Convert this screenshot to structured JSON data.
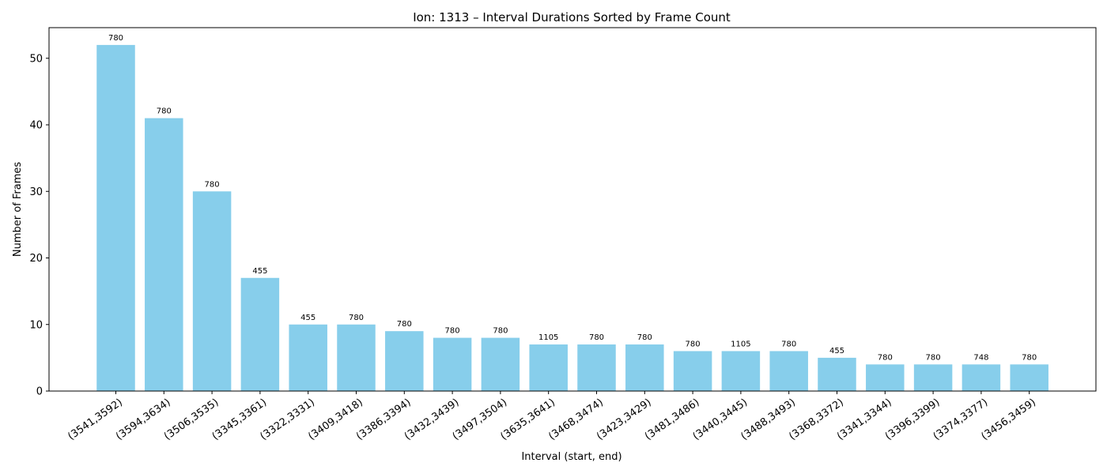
{
  "chart_data": {
    "type": "bar",
    "title": "Ion: 1313 – Interval Durations Sorted by Frame Count",
    "xlabel": "Interval (start, end)",
    "ylabel": "Number of Frames",
    "ylim": [
      0,
      54.6
    ],
    "yticks": [
      0,
      10,
      20,
      30,
      40,
      50
    ],
    "grid": false,
    "bar_color": "#87CEEB",
    "categories": [
      "(3541,3592)",
      "(3594,3634)",
      "(3506,3535)",
      "(3345,3361)",
      "(3322,3331)",
      "(3409,3418)",
      "(3386,3394)",
      "(3432,3439)",
      "(3497,3504)",
      "(3635,3641)",
      "(3468,3474)",
      "(3423,3429)",
      "(3481,3486)",
      "(3440,3445)",
      "(3488,3493)",
      "(3368,3372)",
      "(3341,3344)",
      "(3396,3399)",
      "(3374,3377)",
      "(3456,3459)"
    ],
    "values": [
      52,
      41,
      30,
      17,
      10,
      10,
      9,
      8,
      8,
      7,
      7,
      7,
      6,
      6,
      6,
      5,
      4,
      4,
      4,
      4
    ],
    "bar_labels": [
      "780",
      "780",
      "780",
      "455",
      "455",
      "780",
      "780",
      "780",
      "780",
      "1105",
      "780",
      "780",
      "780",
      "1105",
      "780",
      "455",
      "780",
      "780",
      "748",
      "780"
    ]
  }
}
